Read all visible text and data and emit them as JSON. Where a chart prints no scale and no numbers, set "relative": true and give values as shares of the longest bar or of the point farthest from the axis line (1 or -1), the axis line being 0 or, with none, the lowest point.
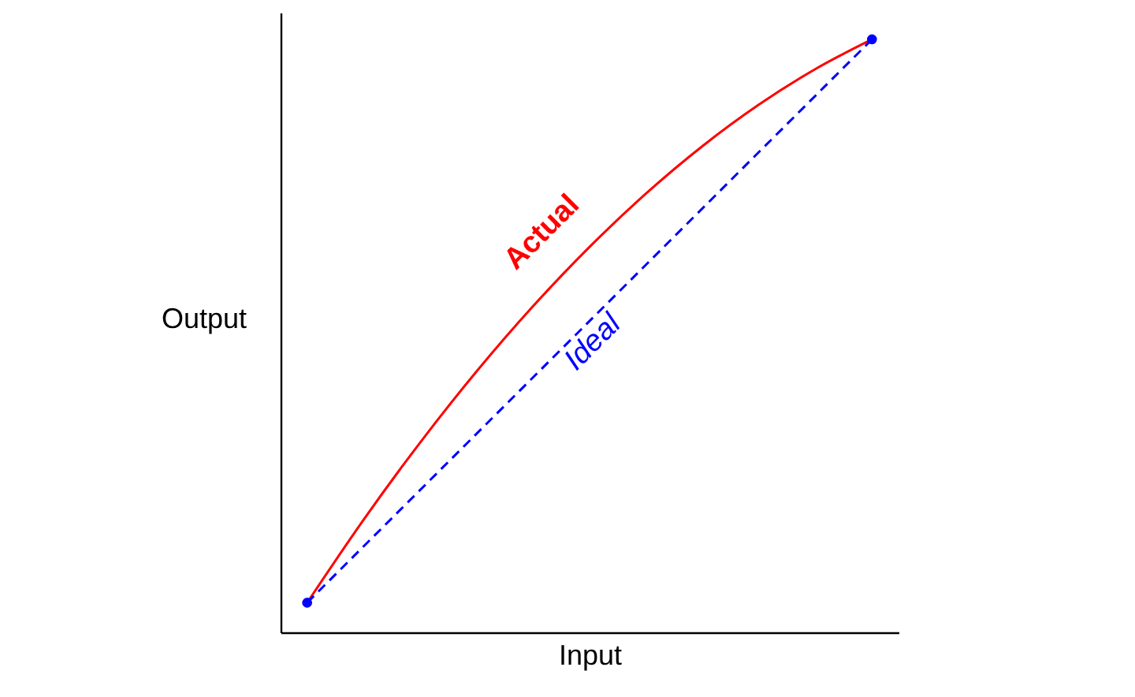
{
  "chart_data": {
    "type": "line",
    "relative": true,
    "xlabel": "Input",
    "ylabel": "Output",
    "tick_labels": false,
    "grid": false,
    "categories": [
      null,
      null,
      null,
      null,
      null,
      null,
      null,
      null,
      null,
      null,
      null
    ],
    "series": [
      {
        "name": "Actual",
        "color": "#ff0000",
        "marker": "none",
        "line_style": "solid",
        "values": [
          0.05,
          0.19,
          0.32,
          0.44,
          0.55,
          0.65,
          0.74,
          0.82,
          0.89,
          0.95,
          1.0
        ]
      },
      {
        "name": "Ideal",
        "color": "#0000ff",
        "marker": "circle",
        "line_style": "dashed",
        "values": [
          0.05,
          null,
          null,
          null,
          null,
          null,
          null,
          null,
          null,
          null,
          1.0
        ]
      }
    ]
  }
}
